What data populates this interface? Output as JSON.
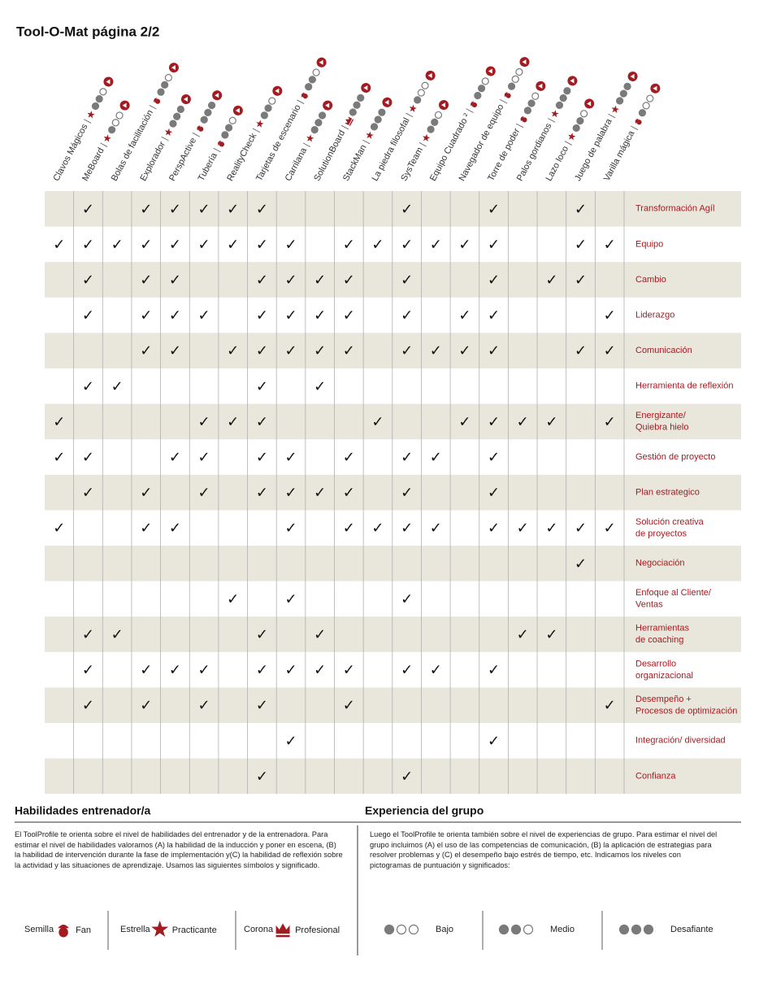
{
  "header": {
    "title": "Tool-O-Mat página 2/2"
  },
  "tools": [
    {
      "name": "Clavos Mágicos",
      "skill": "star",
      "group": 2
    },
    {
      "name": "MeBoard",
      "skill": "star",
      "group": 1
    },
    {
      "name": "Bolas de facilitación",
      "skill": "seed",
      "group": 2
    },
    {
      "name": "Explorador",
      "skill": "star",
      "group": 3
    },
    {
      "name": "PerspActive",
      "skill": "seed",
      "group": 3
    },
    {
      "name": "Tubería",
      "skill": "seed",
      "group": 2
    },
    {
      "name": "RealityCheck",
      "skill": "star",
      "group": 2
    },
    {
      "name": "Tarjetas de escenario",
      "skill": "seed",
      "group": 2
    },
    {
      "name": "Carrilana",
      "skill": "star",
      "group": 3
    },
    {
      "name": "SolutionBoard",
      "skill": "crown",
      "group": 3
    },
    {
      "name": "StackMan",
      "skill": "star",
      "group": 3
    },
    {
      "name": "La piedra filosofal",
      "skill": "star",
      "group": 1
    },
    {
      "name": "SysTeam",
      "skill": "star",
      "group": 2
    },
    {
      "name": "Equipo Cuadrado ²",
      "skill": "seed",
      "group": 2
    },
    {
      "name": "Navegador de equipo",
      "skill": "seed",
      "group": 1
    },
    {
      "name": "Torre de poder",
      "skill": "seed",
      "group": 2
    },
    {
      "name": "Palos gordianos",
      "skill": "star",
      "group": 3
    },
    {
      "name": "Lazo loco",
      "skill": "star",
      "group": 2
    },
    {
      "name": "Juego de palabra",
      "skill": "star",
      "group": 3
    },
    {
      "name": "Varilla mágica",
      "skill": "seed",
      "group": 1
    }
  ],
  "check": "✓",
  "table": {
    "rows": [
      {
        "label": [
          "Transformación Agíl"
        ],
        "cols": [
          1,
          3,
          4,
          5,
          6,
          7,
          12,
          15,
          18
        ]
      },
      {
        "label": [
          "Equipo"
        ],
        "cols": [
          0,
          1,
          2,
          3,
          4,
          5,
          6,
          7,
          8,
          10,
          11,
          12,
          13,
          14,
          15,
          18,
          19
        ]
      },
      {
        "label": [
          "Cambio"
        ],
        "cols": [
          1,
          3,
          4,
          7,
          8,
          9,
          10,
          12,
          15,
          17,
          18
        ]
      },
      {
        "label": [
          "Liderazgo"
        ],
        "cols": [
          1,
          3,
          4,
          5,
          7,
          8,
          9,
          10,
          12,
          14,
          15,
          19
        ]
      },
      {
        "label": [
          "Comunicación"
        ],
        "cols": [
          3,
          4,
          6,
          7,
          8,
          9,
          10,
          12,
          13,
          14,
          15,
          18,
          19
        ]
      },
      {
        "label": [
          "Herramienta de reflexión"
        ],
        "cols": [
          1,
          2,
          7,
          9
        ]
      },
      {
        "label": [
          "Energizante/",
          "Quiebra hielo"
        ],
        "cols": [
          0,
          5,
          6,
          7,
          11,
          14,
          15,
          16,
          17,
          19
        ]
      },
      {
        "label": [
          "Gestión de proyecto"
        ],
        "cols": [
          0,
          1,
          4,
          5,
          7,
          8,
          10,
          12,
          13,
          15
        ]
      },
      {
        "label": [
          "Plan estrategico"
        ],
        "cols": [
          1,
          3,
          5,
          7,
          8,
          9,
          10,
          12,
          15
        ]
      },
      {
        "label": [
          "Solución creativa",
          "de proyectos"
        ],
        "cols": [
          0,
          3,
          4,
          8,
          10,
          11,
          12,
          13,
          15,
          16,
          17,
          18,
          19
        ]
      },
      {
        "label": [
          "Negociación"
        ],
        "cols": [
          18
        ]
      },
      {
        "label": [
          "Enfoque al Cliente/",
          "Ventas"
        ],
        "cols": [
          6,
          8,
          12
        ]
      },
      {
        "label": [
          "Herramientas",
          "de coaching"
        ],
        "cols": [
          1,
          2,
          7,
          9,
          16,
          17
        ]
      },
      {
        "label": [
          "Desarrollo",
          "organizacional"
        ],
        "cols": [
          1,
          3,
          4,
          5,
          7,
          8,
          9,
          10,
          12,
          13,
          15
        ]
      },
      {
        "label": [
          "Desempeño +",
          "Procesos de optimización"
        ],
        "cols": [
          1,
          3,
          5,
          7,
          10,
          19
        ]
      },
      {
        "label": [
          "Integración/ diversidad"
        ],
        "cols": [
          8,
          15
        ]
      },
      {
        "label": [
          "Confianza"
        ],
        "cols": [
          7,
          12
        ]
      }
    ]
  },
  "skills": {
    "title": "Habilidades entrenador/a",
    "text": "El ToolProfile te orienta sobre el nivel de habilidades del entrenador y de la entrenadora. Para estimar el nivel de habilidades valoramos (A) la habilidad de la inducción y poner en escena, (B) la habilidad de intervención durante la fase de implementación y(C) la habilidad de reflexión sobre la actividad y las situaciones de aprendizaje. Usamos las siguientes símbolos y significado.",
    "legend": [
      {
        "name": "Semilla",
        "kind": "seed",
        "level": "Fan"
      },
      {
        "name": "Estrella",
        "kind": "star",
        "level": "Practicante"
      },
      {
        "name": "Corona",
        "kind": "crown",
        "level": "Profesional"
      }
    ]
  },
  "group": {
    "title": "Experiencia del grupo",
    "text": "Luego el ToolProfile te orienta también sobre el nivel de experiencias de grupo. Para estimar el nivel del grupo incluimos (A) el uso de las competencias de comunicación, (B) la aplicación de estrategias para resolver problemas y (C) el desempeño bajo estrés de tiempo, etc. Indicamos los niveles con pictogramas de puntuación y significados:",
    "legend": [
      {
        "label": "Bajo",
        "filled": 1
      },
      {
        "label": "Medio",
        "filled": 2
      },
      {
        "label": "Desafiante",
        "filled": 3
      }
    ]
  }
}
